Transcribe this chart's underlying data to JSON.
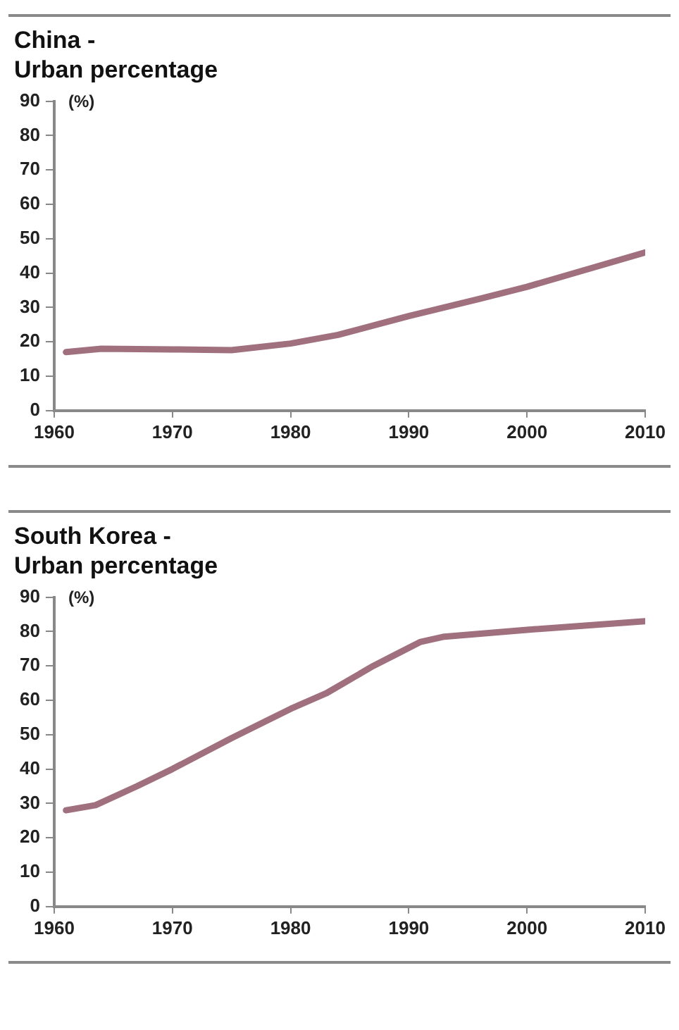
{
  "chart_data": [
    {
      "type": "line",
      "title": "China -\nUrban percentage",
      "ylabel": "(%)",
      "x": [
        1961,
        1964,
        1970,
        1975,
        1980,
        1984,
        1990,
        1996,
        2000,
        2005,
        2010
      ],
      "series": [
        {
          "color": "#a0707f",
          "values": [
            17,
            18,
            17.8,
            17.6,
            19.5,
            22,
            27.5,
            32.5,
            36,
            41,
            46
          ]
        }
      ],
      "xlim": [
        1960,
        2010
      ],
      "xticks": [
        1960,
        1970,
        1980,
        1990,
        2000,
        2010
      ],
      "ylim": [
        0,
        90
      ],
      "yticks": [
        0,
        10,
        20,
        30,
        40,
        50,
        60,
        70,
        80,
        90
      ],
      "grid": false,
      "legend": false,
      "marker": "none",
      "line_style": "solid"
    },
    {
      "type": "line",
      "title": "South Korea -\nUrban percentage",
      "ylabel": "(%)",
      "x": [
        1961,
        1963.5,
        1967,
        1970,
        1975,
        1980,
        1983,
        1987,
        1989,
        1991,
        1993,
        2000,
        2010
      ],
      "series": [
        {
          "color": "#a0707f",
          "values": [
            28,
            29.5,
            35,
            40,
            49,
            57.5,
            62,
            70,
            73.5,
            77,
            78.5,
            80.5,
            83
          ]
        }
      ],
      "xlim": [
        1960,
        2010
      ],
      "xticks": [
        1960,
        1970,
        1980,
        1990,
        2000,
        2010
      ],
      "ylim": [
        0,
        90
      ],
      "yticks": [
        0,
        10,
        20,
        30,
        40,
        50,
        60,
        70,
        80,
        90
      ],
      "grid": false,
      "legend": false,
      "marker": "none",
      "line_style": "solid"
    }
  ]
}
